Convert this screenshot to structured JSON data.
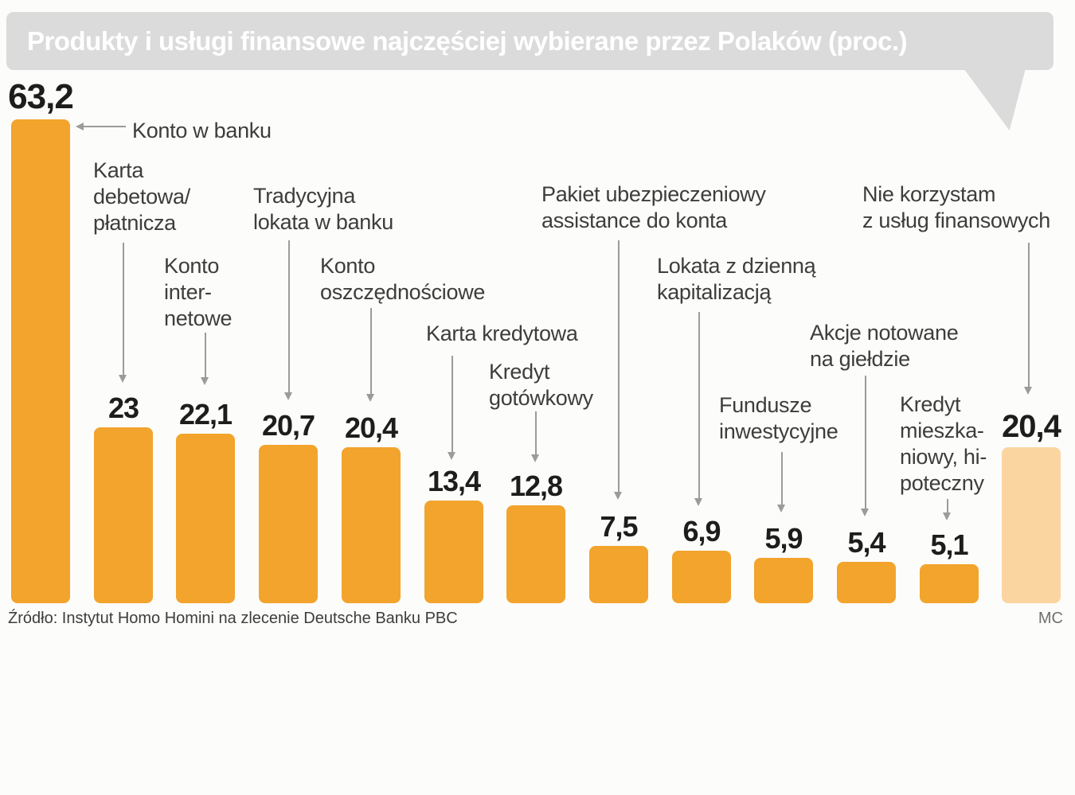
{
  "title": "Produkty i usługi finansowe najczęściej wybierane przez Polaków (proc.)",
  "source": "Źródło: Instytut Homo Homini na zlecenie Deutsche Banku PBC",
  "credit": "MC",
  "colors": {
    "bar": "#F2A42C",
    "bar_highlight": "#FBD5A0",
    "bubble": "#DBDBDB",
    "title_text": "#FFFFFF",
    "value_text": "#1D1D1B",
    "label_text": "#3D3D3C",
    "line": "#9B9B9B",
    "source_text": "#3D3D3C",
    "credit_text": "#6F6F6F",
    "background": "#FCFCFB"
  },
  "chart_data": {
    "type": "bar",
    "title": "Produkty i usługi finansowe najczęściej wybierane przez Polaków (proc.)",
    "unit": "proc.",
    "xlabel": "",
    "ylabel": "",
    "ylim": [
      0,
      65
    ],
    "grid": false,
    "legend": false,
    "highlight_index": 12,
    "categories": [
      "Konto w banku",
      "Karta debetowa/płatnicza",
      "Konto internetowe",
      "Tradycyjna lokata w banku",
      "Konto oszczędnościowe",
      "Karta kredytowa",
      "Kredyt gotówkowy",
      "Pakiet ubezpieczeniowy assistance do konta",
      "Lokata z dzienną kapitalizacją",
      "Fundusze inwestycyjne",
      "Akcje notowane na giełdzie",
      "Kredyt mieszkaniowy, hipoteczny",
      "Nie korzystam z usług finansowych"
    ],
    "label_lines": [
      [
        "Konto w banku"
      ],
      [
        "Karta",
        "debetowa/",
        "płatnicza"
      ],
      [
        "Konto",
        "inter-",
        "netowe"
      ],
      [
        "Tradycyjna",
        "lokata w banku"
      ],
      [
        "Konto",
        "oszczędnościowe"
      ],
      [
        "Karta kredytowa"
      ],
      [
        "Kredyt",
        "gotówkowy"
      ],
      [
        "Pakiet ubezpieczeniowy",
        "assistance do konta"
      ],
      [
        "Lokata z dzienną",
        "kapitalizacją"
      ],
      [
        "Fundusze",
        "inwestycyjne"
      ],
      [
        "Akcje notowane",
        "na giełdzie"
      ],
      [
        "Kredyt",
        "mieszka-",
        "niowy, hi-",
        "poteczny"
      ],
      [
        "Nie korzystam",
        "z usług finansowych"
      ]
    ],
    "values": [
      63.2,
      23,
      22.1,
      20.7,
      20.4,
      13.4,
      12.8,
      7.5,
      6.9,
      5.9,
      5.4,
      5.1,
      20.4
    ],
    "value_labels": [
      "63,2",
      "23",
      "22,1",
      "20,7",
      "20,4",
      "13,4",
      "12,8",
      "7,5",
      "6,9",
      "5,9",
      "5,4",
      "5,1",
      "20,4"
    ]
  }
}
